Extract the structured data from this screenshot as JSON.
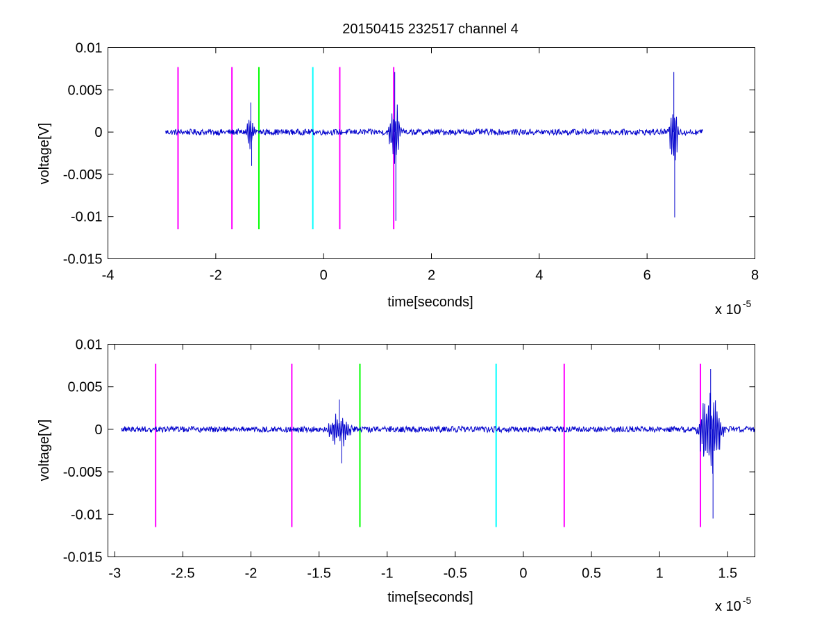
{
  "figure_title": "20150415 232517 channel 4",
  "chart_data": [
    {
      "type": "line",
      "title": "20150415 232517 channel 4",
      "xlabel": "time[seconds]",
      "ylabel": "voltage[V]",
      "x_multiplier_label": "x 10",
      "x_multiplier_exponent": "-5",
      "xlim": [
        -4e-05,
        8e-05
      ],
      "ylim": [
        -0.015,
        0.01
      ],
      "xticks": [
        -4,
        -2,
        0,
        2,
        4,
        6,
        8
      ],
      "xtick_labels": [
        "-4",
        "-2",
        "0",
        "2",
        "4",
        "6",
        "8"
      ],
      "yticks": [
        -0.015,
        -0.01,
        -0.005,
        0,
        0.005,
        0.01
      ],
      "ytick_labels": [
        "-0.015",
        "-0.01",
        "-0.005",
        "0",
        "0.005",
        "0.01"
      ],
      "grid": false,
      "series": [
        {
          "color": "#0000cc",
          "x_range": [
            -2.93e-05,
            7.03e-05
          ],
          "baseline": 0,
          "bursts": [
            {
              "t0": -1.45e-05,
              "t1": -1.12e-05,
              "peak_max": 0.0035,
              "peak_min": -0.004
            },
            {
              "t0": 1.2e-05,
              "t1": 1.6e-05,
              "peak_max": 0.0071,
              "peak_min": -0.0105
            },
            {
              "t0": 6.4e-05,
              "t1": 6.72e-05,
              "peak_max": 0.0071,
              "peak_min": -0.0101
            }
          ]
        }
      ],
      "markers": [
        {
          "x": -2.7e-05,
          "color": "#ff00ff",
          "y": [
            -0.0115,
            0.0077
          ]
        },
        {
          "x": -1.7e-05,
          "color": "#ff00ff",
          "y": [
            -0.0115,
            0.0077
          ]
        },
        {
          "x": -1.2e-05,
          "color": "#00ff00",
          "y": [
            -0.0115,
            0.0077
          ]
        },
        {
          "x": -2e-06,
          "color": "#00ffff",
          "y": [
            -0.0115,
            0.0077
          ]
        },
        {
          "x": 3e-06,
          "color": "#ff00ff",
          "y": [
            -0.0115,
            0.0077
          ]
        },
        {
          "x": 1.3e-05,
          "color": "#ff00ff",
          "y": [
            -0.0115,
            0.0077
          ]
        }
      ]
    },
    {
      "type": "line",
      "title": "",
      "xlabel": "time[seconds]",
      "ylabel": "voltage[V]",
      "x_multiplier_label": "x 10",
      "x_multiplier_exponent": "-5",
      "xlim": [
        -3.05e-05,
        1.7e-05
      ],
      "ylim": [
        -0.015,
        0.01
      ],
      "xticks": [
        -3,
        -2.5,
        -2,
        -1.5,
        -1,
        -0.5,
        0,
        0.5,
        1,
        1.5
      ],
      "xtick_labels": [
        "-3",
        "-2.5",
        "-2",
        "-1.5",
        "-1",
        "-0.5",
        "0",
        "0.5",
        "1",
        "1.5"
      ],
      "yticks": [
        -0.015,
        -0.01,
        -0.005,
        0,
        0.005,
        0.01
      ],
      "ytick_labels": [
        "-0.015",
        "-0.01",
        "-0.005",
        "0",
        "0.005",
        "0.01"
      ],
      "grid": false,
      "series": [
        {
          "color": "#0000cc",
          "x_range": [
            -2.95e-05,
            1.7e-05
          ],
          "baseline": 0,
          "bursts": [
            {
              "t0": -1.45e-05,
              "t1": -1.12e-05,
              "peak_max": 0.0035,
              "peak_min": -0.004
            },
            {
              "t0": 1.27e-05,
              "t1": 1.62e-05,
              "peak_max": 0.0071,
              "peak_min": -0.0105
            }
          ]
        }
      ],
      "markers": [
        {
          "x": -2.7e-05,
          "color": "#ff00ff",
          "y": [
            -0.0115,
            0.0077
          ]
        },
        {
          "x": -1.7e-05,
          "color": "#ff00ff",
          "y": [
            -0.0115,
            0.0077
          ]
        },
        {
          "x": -1.2e-05,
          "color": "#00ff00",
          "y": [
            -0.0115,
            0.0077
          ]
        },
        {
          "x": -2e-06,
          "color": "#00ffff",
          "y": [
            -0.0115,
            0.0077
          ]
        },
        {
          "x": 3e-06,
          "color": "#ff00ff",
          "y": [
            -0.0115,
            0.0077
          ]
        },
        {
          "x": 1.3e-05,
          "color": "#ff00ff",
          "y": [
            -0.0115,
            0.0077
          ]
        }
      ]
    }
  ]
}
